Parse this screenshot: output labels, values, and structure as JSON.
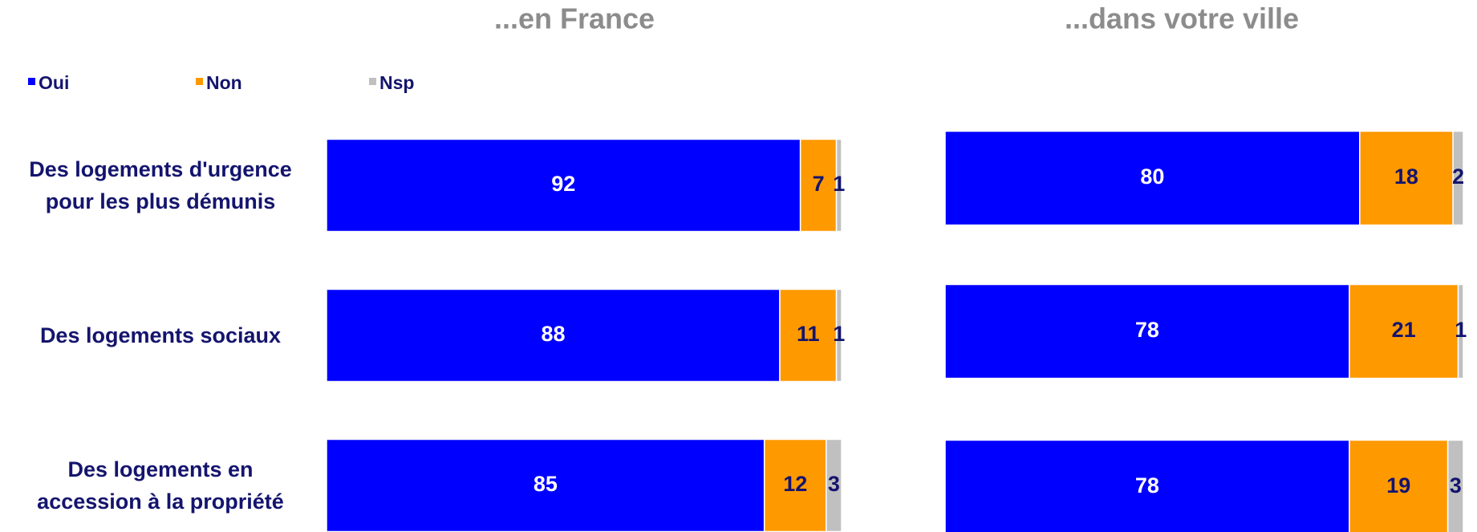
{
  "chart_data": [
    {
      "type": "stacked-bar-horizontal",
      "title": "...en France",
      "categories": [
        "Des logements d'urgence\npour les plus démunis",
        "Des logements sociaux",
        "Des logements en\naccession à la propriété"
      ],
      "xlim": [
        0,
        100
      ],
      "series": [
        {
          "name": "Oui",
          "color": "#0000ff",
          "values": [
            92,
            88,
            85
          ]
        },
        {
          "name": "Non",
          "color": "#ff9900",
          "values": [
            7,
            11,
            12
          ]
        },
        {
          "name": "Nsp",
          "color": "#c0c0c0",
          "values": [
            1,
            1,
            3
          ]
        }
      ]
    },
    {
      "type": "stacked-bar-horizontal",
      "title": "...dans votre ville",
      "xlim": [
        0,
        100
      ],
      "series": [
        {
          "color": "#0000ff",
          "values": [
            80,
            78,
            78
          ]
        },
        {
          "color": "#ff9900",
          "values": [
            18,
            21,
            19
          ]
        },
        {
          "color": "#c0c0c0",
          "values": [
            2,
            1,
            3
          ]
        }
      ]
    }
  ]
}
